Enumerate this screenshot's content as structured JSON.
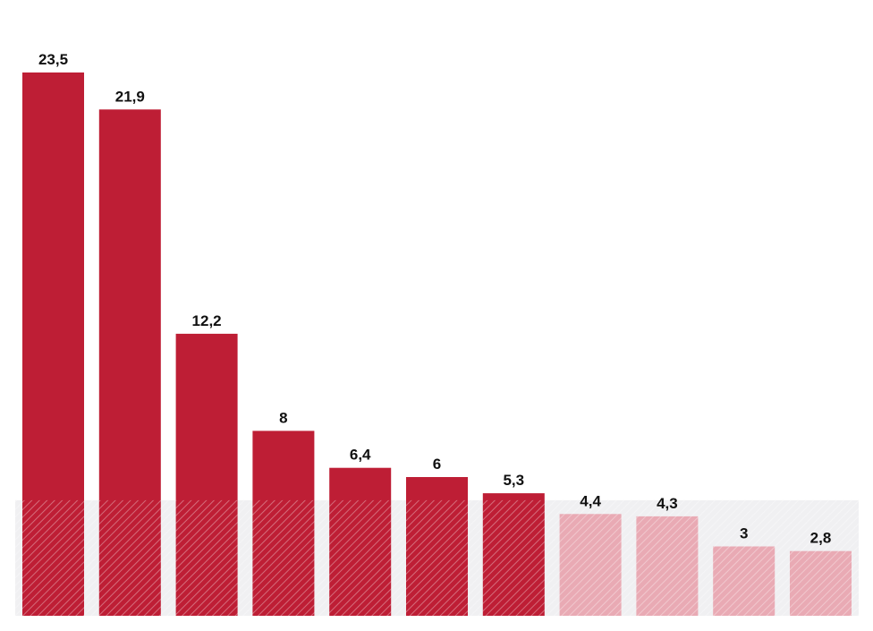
{
  "chart_data": {
    "type": "bar",
    "categories": [],
    "values": [
      23.5,
      21.9,
      12.2,
      8,
      6.4,
      6,
      5.3,
      4.4,
      4.3,
      3,
      2.8
    ],
    "labels": [
      "23,5",
      "21,9",
      "12,2",
      "8",
      "6,4",
      "6",
      "5,3",
      "4,4",
      "4,3",
      "3",
      "2,8"
    ],
    "highlighted": [
      true,
      true,
      true,
      true,
      true,
      true,
      true,
      false,
      false,
      false,
      false
    ],
    "reference_band_max": 5,
    "ylim": [
      0,
      23.5
    ],
    "title": "",
    "xlabel": "",
    "ylabel": "",
    "grid": false,
    "colors": {
      "primary": "#be1e35",
      "secondary": "#e9aab4",
      "band": "#dddde3",
      "label": "#111111"
    }
  }
}
